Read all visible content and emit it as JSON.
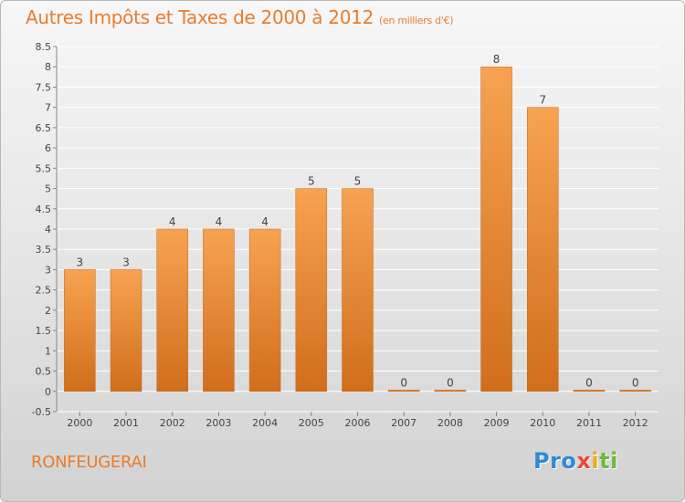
{
  "header": {
    "title": "Autres Impôts et Taxes de 2000 à 2012",
    "subtitle": "(en milliers d'€)"
  },
  "commune": "RONFEUGERAI",
  "logo": {
    "p1": "Pro",
    "p2": "x",
    "p3": "i",
    "p4": "ti"
  },
  "colors": {
    "bar_top": "#f7a352",
    "bar_bottom": "#d06e1c",
    "accent": "#e87d2c",
    "grid": "#ffffff"
  },
  "chart_data": {
    "type": "bar",
    "categories": [
      "2000",
      "2001",
      "2002",
      "2003",
      "2004",
      "2005",
      "2006",
      "2007",
      "2008",
      "2009",
      "2010",
      "2011",
      "2012"
    ],
    "values": [
      3,
      3,
      4,
      4,
      4,
      5,
      5,
      0,
      0,
      8,
      7,
      0,
      0
    ],
    "data_labels": [
      "3",
      "3",
      "4",
      "4",
      "4",
      "5",
      "5",
      "0",
      "0",
      "8",
      "7",
      "0",
      "0"
    ],
    "title": "Autres Impôts et Taxes de 2000 à 2012",
    "xlabel": "",
    "ylabel": "",
    "ylim": [
      -0.5,
      8.5
    ],
    "yticks": [
      -0.5,
      0,
      0.5,
      1,
      1.5,
      2,
      2.5,
      3,
      3.5,
      4,
      4.5,
      5,
      5.5,
      6,
      6.5,
      7,
      7.5,
      8,
      8.5
    ],
    "ytick_labels": [
      "-0.5",
      "0",
      "0.5",
      "1",
      "1.5",
      "2",
      "2.5",
      "3",
      "3.5",
      "4",
      "4.5",
      "5",
      "5.5",
      "6",
      "6.5",
      "7",
      "7.5",
      "8",
      "8.5"
    ],
    "grid": true
  }
}
